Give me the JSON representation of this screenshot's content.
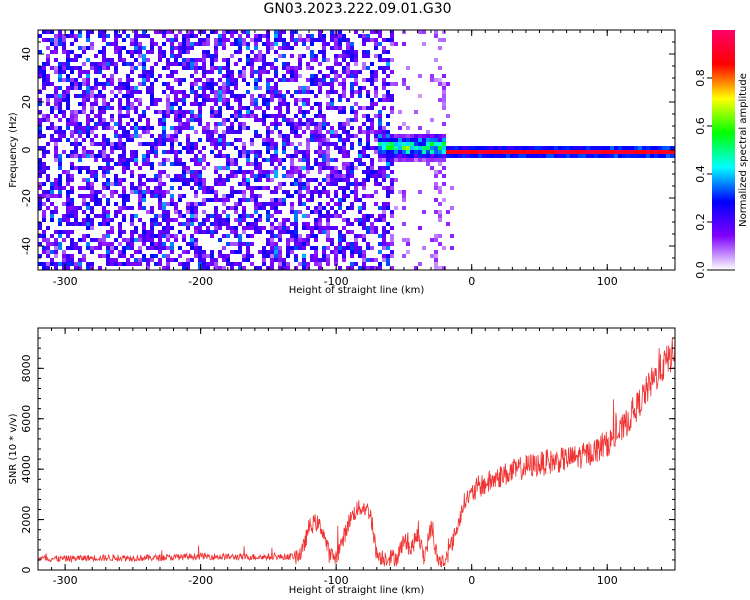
{
  "title": "GN03.2023.222.09.01.G30",
  "chart_data": [
    {
      "type": "heatmap",
      "title": "GN03.2023.222.09.01.G30",
      "xlabel": "Height of straight line (km)",
      "ylabel": "Frequency (Hz)",
      "xlim": [
        -320,
        150
      ],
      "ylim": [
        -50,
        50
      ],
      "xticks": [
        -300,
        -200,
        -100,
        0,
        100
      ],
      "yticks": [
        -40,
        -20,
        0,
        20,
        40
      ],
      "colorbar": {
        "label": "Normalized spectral amplitude",
        "range": [
          0.0,
          1.0
        ],
        "ticks": [
          "0.0",
          "0.2",
          "0.4",
          "0.6",
          "0.8"
        ],
        "colormap": [
          "#ffffff",
          "#8000ff",
          "#0000ff",
          "#00ffff",
          "#00ff00",
          "#ffff00",
          "#ff0000",
          "#ff0066"
        ]
      },
      "features": {
        "noise_region_x": [
          -320,
          -60
        ],
        "signal_line_frequency_hz": 0,
        "signal_start_x": -70,
        "signal_peak_amplitude": 0.95,
        "noise_amplitude": 0.25
      }
    },
    {
      "type": "line",
      "xlabel": "Height of straight line (km)",
      "ylabel": "SNR (10 * v/v)",
      "xlim": [
        -320,
        150
      ],
      "ylim": [
        0,
        9600
      ],
      "xticks": [
        -300,
        -200,
        -100,
        0,
        100
      ],
      "yticks": [
        0,
        2000,
        4000,
        6000,
        8000
      ],
      "color": "#f03232",
      "series": [
        {
          "x": [
            -320,
            -300,
            -280,
            -260,
            -240,
            -220,
            -200,
            -180,
            -160,
            -140,
            -130,
            -125,
            -120,
            -115,
            -110,
            -105,
            -100,
            -95,
            -90,
            -85,
            -80,
            -75,
            -70,
            -65,
            -60,
            -55,
            -50,
            -45,
            -40,
            -35,
            -30,
            -25,
            -20,
            -15,
            -10,
            -5,
            0,
            5,
            10,
            20,
            30,
            40,
            50,
            60,
            70,
            80,
            90,
            100,
            110,
            120,
            130,
            140,
            150
          ],
          "values": [
            450,
            450,
            480,
            480,
            480,
            500,
            550,
            520,
            520,
            520,
            550,
            700,
            1700,
            1900,
            1600,
            600,
            500,
            1200,
            2000,
            2400,
            2500,
            2300,
            600,
            500,
            500,
            500,
            1200,
            800,
            1400,
            500,
            1700,
            400,
            300,
            1000,
            1800,
            2800,
            3000,
            3300,
            3400,
            3700,
            3900,
            4100,
            4200,
            4300,
            4400,
            4500,
            4700,
            5000,
            5500,
            6300,
            7200,
            8000,
            8700
          ]
        }
      ]
    }
  ]
}
